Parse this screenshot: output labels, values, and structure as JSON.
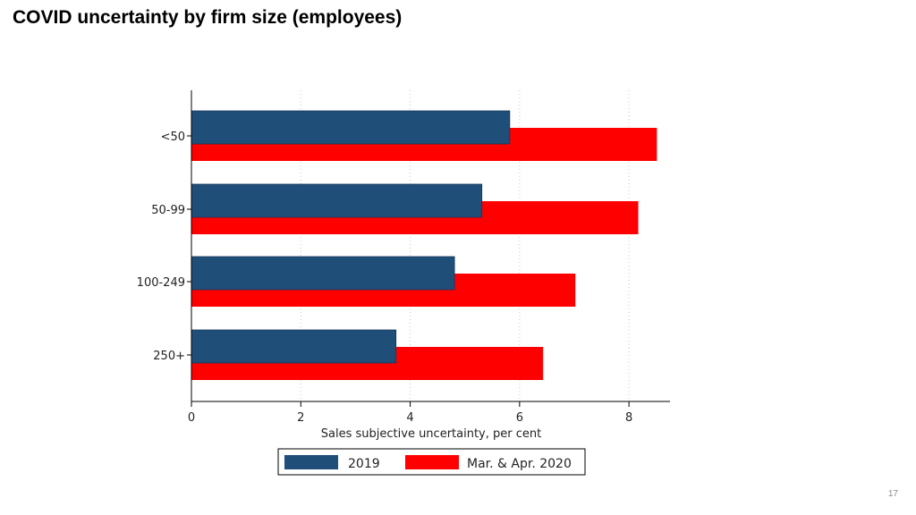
{
  "slide": {
    "title": "COVID uncertainty by firm size (employees)",
    "page_number": "17"
  },
  "chart_data": {
    "type": "bar",
    "orientation": "horizontal",
    "title": "",
    "xlabel": "Sales subjective uncertainty, per cent",
    "ylabel": "",
    "categories": [
      "<50",
      "50-99",
      "100-249",
      "250+"
    ],
    "series": [
      {
        "name": "2019",
        "color": "#1f4e79",
        "values": [
          5.82,
          5.31,
          4.81,
          3.74
        ]
      },
      {
        "name": "Mar. & Apr. 2020",
        "color": "#ff0000",
        "values": [
          8.51,
          8.17,
          7.02,
          6.43
        ]
      }
    ],
    "xlim": [
      0,
      8.75
    ],
    "xticks": [
      0,
      2,
      4,
      6,
      8
    ],
    "grid": "vertical-dotted",
    "legend_position": "bottom-center"
  }
}
